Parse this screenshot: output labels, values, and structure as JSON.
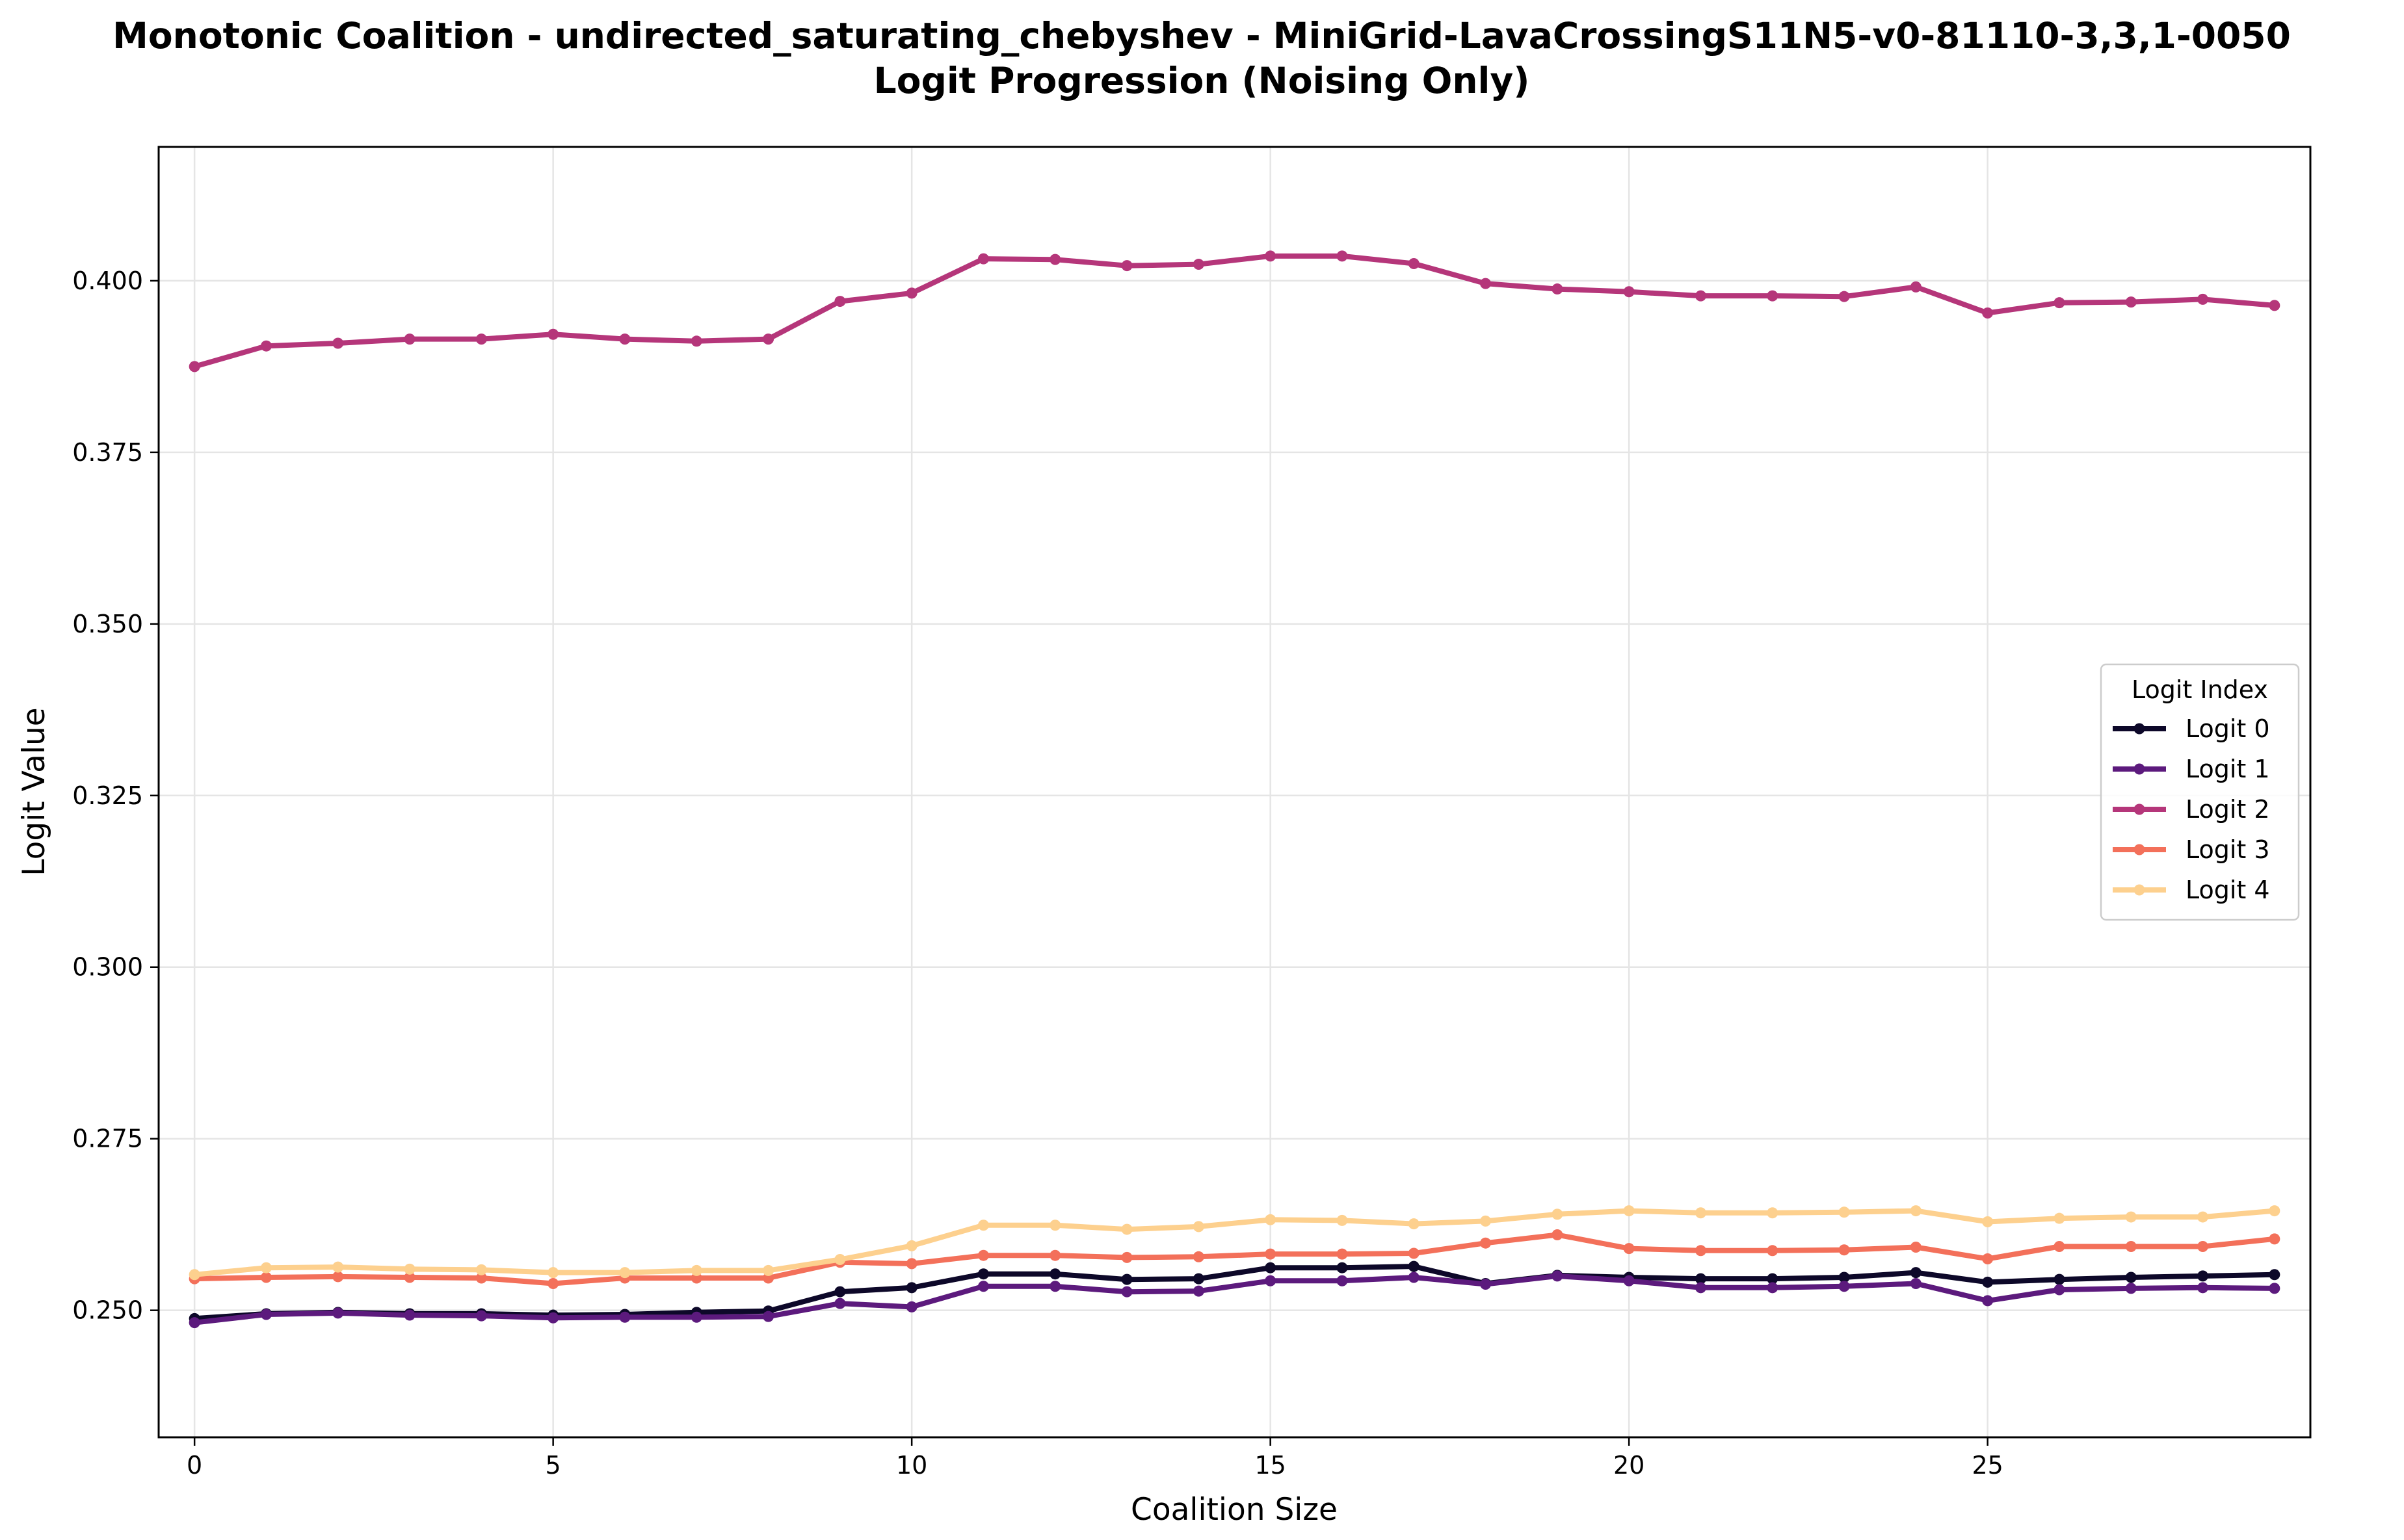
{
  "chart_data": {
    "type": "line",
    "title": "Monotonic Coalition - undirected_saturating_chebyshev - MiniGrid-LavaCrossingS11N5-v0-81110-3,3,1-0050",
    "subtitle": "Logit Progression (Noising Only)",
    "xlabel": "Coalition Size",
    "ylabel": "Logit Value",
    "xlim": [
      -0.5,
      29.5
    ],
    "ylim": [
      0.2315,
      0.4195
    ],
    "xticks": [
      0,
      5,
      10,
      15,
      20,
      25
    ],
    "yticks": [
      0.25,
      0.275,
      0.3,
      0.325,
      0.35,
      0.375,
      0.4
    ],
    "ytick_labels": [
      "0.250",
      "0.275",
      "0.300",
      "0.325",
      "0.350",
      "0.375",
      "0.400"
    ],
    "grid": true,
    "legend": {
      "title": "Logit Index",
      "position": "center-right"
    },
    "x": [
      0,
      1,
      2,
      3,
      4,
      5,
      6,
      7,
      8,
      9,
      10,
      11,
      12,
      13,
      14,
      15,
      16,
      17,
      18,
      19,
      20,
      21,
      22,
      23,
      24,
      25,
      26,
      27,
      28,
      29
    ],
    "series": [
      {
        "name": "Logit 0",
        "color": "#0d0829",
        "values": [
          0.2488,
          0.2495,
          0.2497,
          0.2495,
          0.2495,
          0.2493,
          0.2494,
          0.2497,
          0.2499,
          0.2527,
          0.2533,
          0.2553,
          0.2553,
          0.2545,
          0.2546,
          0.2562,
          0.2562,
          0.2564,
          0.2539,
          0.2551,
          0.2548,
          0.2546,
          0.2546,
          0.2548,
          0.2555,
          0.2541,
          0.2545,
          0.2548,
          0.255,
          0.2552
        ]
      },
      {
        "name": "Logit 1",
        "color": "#5c1a7d",
        "values": [
          0.2482,
          0.2494,
          0.2496,
          0.2493,
          0.2492,
          0.2489,
          0.249,
          0.249,
          0.2491,
          0.251,
          0.2505,
          0.2535,
          0.2535,
          0.2527,
          0.2528,
          0.2543,
          0.2543,
          0.2548,
          0.2538,
          0.255,
          0.2543,
          0.2533,
          0.2533,
          0.2535,
          0.2539,
          0.2514,
          0.253,
          0.2532,
          0.2533,
          0.2532
        ]
      },
      {
        "name": "Logit 2",
        "color": "#b5367a",
        "values": [
          0.3875,
          0.3905,
          0.3909,
          0.3915,
          0.3915,
          0.3922,
          0.3915,
          0.3912,
          0.3915,
          0.397,
          0.3982,
          0.4032,
          0.4031,
          0.4022,
          0.4024,
          0.4036,
          0.4036,
          0.4025,
          0.3996,
          0.3988,
          0.3984,
          0.3978,
          0.3978,
          0.3977,
          0.3991,
          0.3953,
          0.3968,
          0.3969,
          0.3973,
          0.3964
        ]
      },
      {
        "name": "Logit 3",
        "color": "#f3705a",
        "values": [
          0.2546,
          0.2548,
          0.2549,
          0.2548,
          0.2547,
          0.2539,
          0.2547,
          0.2547,
          0.2547,
          0.257,
          0.2568,
          0.258,
          0.258,
          0.2577,
          0.2578,
          0.2582,
          0.2582,
          0.2583,
          0.2598,
          0.261,
          0.259,
          0.2587,
          0.2587,
          0.2588,
          0.2592,
          0.2575,
          0.2593,
          0.2593,
          0.2593,
          0.2604
        ]
      },
      {
        "name": "Logit 4",
        "color": "#fdd08e",
        "values": [
          0.2552,
          0.2562,
          0.2563,
          0.256,
          0.2559,
          0.2555,
          0.2555,
          0.2558,
          0.2558,
          0.2574,
          0.2594,
          0.2624,
          0.2624,
          0.2618,
          0.2622,
          0.2632,
          0.2631,
          0.2626,
          0.263,
          0.264,
          0.2645,
          0.2642,
          0.2642,
          0.2643,
          0.2645,
          0.2629,
          0.2634,
          0.2636,
          0.2636,
          0.2645
        ]
      }
    ]
  }
}
